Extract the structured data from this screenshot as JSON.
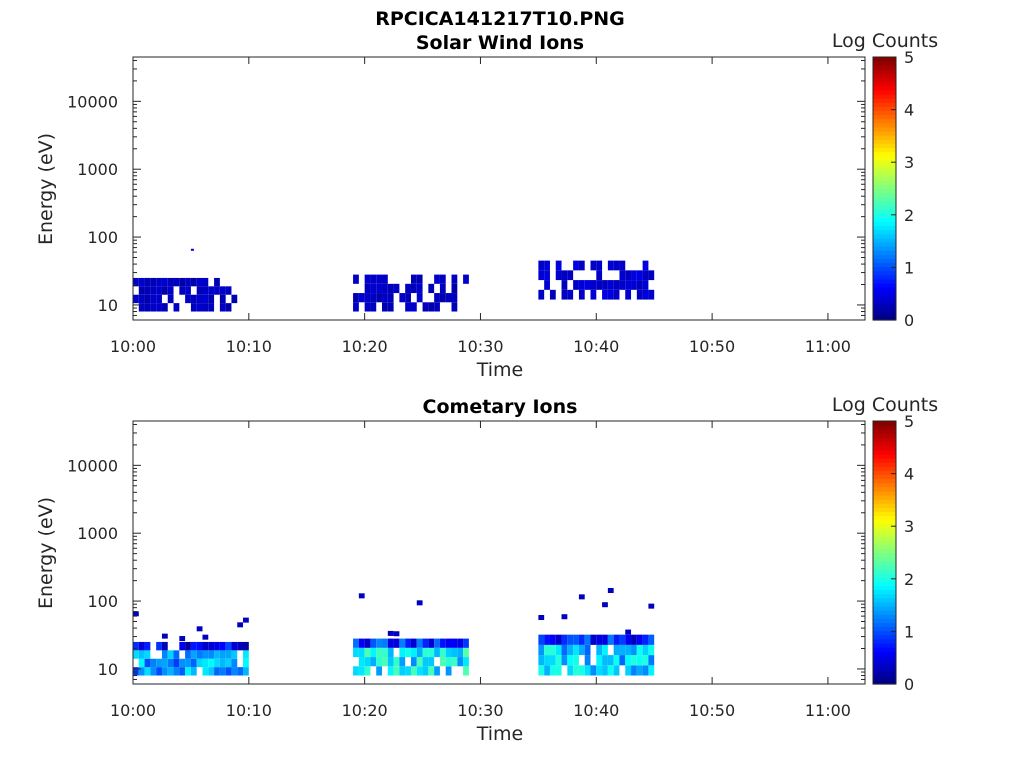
{
  "figure_title": "RPCICA141217T10.PNG",
  "chart_data": [
    {
      "type": "heatmap",
      "title": "Solar Wind Ions",
      "xlabel": "Time",
      "ylabel": "Energy (eV)",
      "x_ticks": [
        "10:00",
        "10:10",
        "10:20",
        "10:30",
        "10:40",
        "10:50",
        "11:00"
      ],
      "x_range_minutes": [
        0,
        63.2
      ],
      "y_scale": "log",
      "y_ticks": [
        "10",
        "100",
        "1000",
        "10000"
      ],
      "y_range": [
        6,
        45000
      ],
      "colorbar": {
        "label": "Log Counts",
        "ticks": [
          "0",
          "1",
          "2",
          "3",
          "4",
          "5"
        ],
        "range": [
          0,
          5
        ],
        "colormap": "jet"
      },
      "active_intervals": [
        {
          "start": "10:00",
          "end": "10:09",
          "energy_range_eV": [
            8,
            25
          ],
          "log_counts": 0.2
        },
        {
          "start": "10:19",
          "end": "10:29",
          "energy_range_eV": [
            8,
            28
          ],
          "log_counts": 0.2
        },
        {
          "start": "10:35",
          "end": "10:45",
          "energy_range_eV": [
            12,
            45
          ],
          "log_counts": 0.3
        }
      ],
      "outliers": [
        {
          "time": "10:05",
          "energy_eV": 65,
          "log_counts": 0.5
        }
      ]
    },
    {
      "type": "heatmap",
      "title": "Cometary Ions",
      "xlabel": "Time",
      "ylabel": "Energy (eV)",
      "x_ticks": [
        "10:00",
        "10:10",
        "10:20",
        "10:30",
        "10:40",
        "10:50",
        "11:00"
      ],
      "x_range_minutes": [
        0,
        63.2
      ],
      "y_scale": "log",
      "y_ticks": [
        "10",
        "100",
        "1000",
        "10000"
      ],
      "y_range": [
        6,
        45000
      ],
      "colorbar": {
        "label": "Log Counts",
        "ticks": [
          "0",
          "1",
          "2",
          "3",
          "4",
          "5"
        ],
        "range": [
          0,
          5
        ],
        "colormap": "jet"
      },
      "active_intervals": [
        {
          "start": "10:00",
          "end": "10:10",
          "energy_range_eV": [
            8,
            25
          ],
          "log_counts_core": 1.4,
          "sparse_up_to_eV": 100
        },
        {
          "start": "10:19",
          "end": "10:29",
          "energy_range_eV": [
            8,
            28
          ],
          "log_counts_core": 1.8,
          "sparse_up_to_eV": 140
        },
        {
          "start": "10:35",
          "end": "10:45",
          "energy_range_eV": [
            8,
            32
          ],
          "log_counts_core": 1.6,
          "sparse_up_to_eV": 160
        }
      ]
    }
  ]
}
